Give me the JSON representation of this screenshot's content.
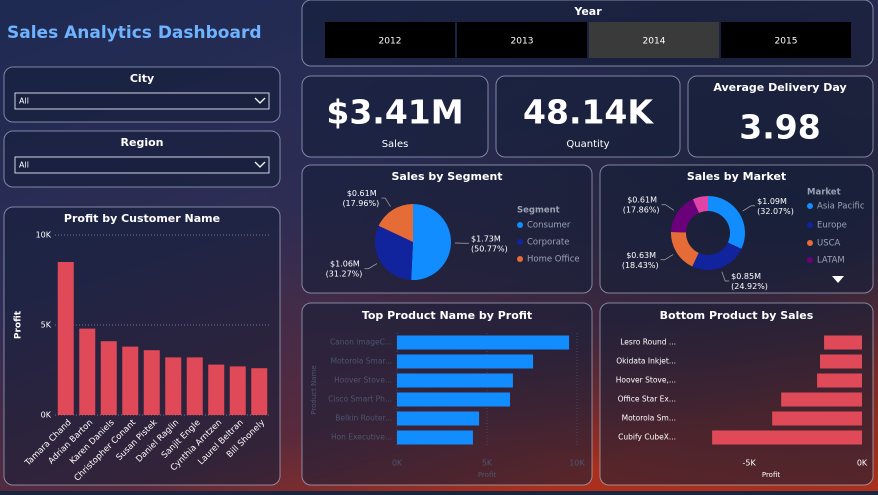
{
  "title": "Sales Analytics Dashboard",
  "slicers": [
    {
      "label": "City",
      "value": "All"
    },
    {
      "label": "Region",
      "value": "All"
    }
  ],
  "year": {
    "label": "Year",
    "options": [
      "2012",
      "2013",
      "2014",
      "2015"
    ],
    "selected": 2
  },
  "cards": [
    {
      "value": "$3.41M",
      "label": "Sales"
    },
    {
      "value": "48.14K",
      "label": "Quantity"
    },
    {
      "title": "Average Delivery Day",
      "value": "3.98"
    }
  ],
  "chart_data": [
    {
      "type": "bar",
      "title": "Profit by Customer Name",
      "y_label": "Profit",
      "color": "#e04a58",
      "categories": [
        "Tamara Chand",
        "Adrian Barton",
        "Karen Daniels",
        "Christopher Conant",
        "Susan Pistek",
        "Daniel Raglin",
        "Sanjit Engle",
        "Cynthia Arntzen",
        "Laurel Beltran",
        "Bill Shonely"
      ],
      "values": [
        8500,
        4800,
        4100,
        3800,
        3600,
        3200,
        3200,
        2800,
        2700,
        2600
      ],
      "ylim": [
        0,
        10000
      ],
      "yticks": [
        {
          "value": 0,
          "label": "0K"
        },
        {
          "value": 5000,
          "label": "5K"
        },
        {
          "value": 10000,
          "label": "10K"
        }
      ],
      "grid": true
    },
    {
      "type": "pie",
      "title": "Sales by Segment",
      "legend_title": "Segment",
      "categories": [
        "Consumer",
        "Corporate",
        "Home Office"
      ],
      "values": [
        50.77,
        31.27,
        17.96
      ],
      "value_labels": [
        "$1.73M (50.77%)",
        "$1.06M (31.27%)",
        "$0.61M (17.96%)"
      ],
      "colors": [
        "#118dff",
        "#12239e",
        "#e66c37"
      ]
    },
    {
      "type": "donut",
      "title": "Sales by Market",
      "legend_title": "Market",
      "categories": [
        "Asia Pacific",
        "Europe",
        "USCA",
        "LATAM",
        null
      ],
      "values": [
        32.07,
        24.92,
        18.43,
        17.86,
        6.72
      ],
      "value_labels": [
        "$1.09M (32.07%)",
        "$0.85M (24.92%)",
        "$0.63M (18.43%)",
        "$0.61M (17.86%)",
        null
      ],
      "colors": [
        "#118dff",
        "#12239e",
        "#e66c37",
        "#6b007b",
        "#e044a7"
      ]
    },
    {
      "type": "hbar",
      "title": "Top Product Name by Profit",
      "x_label": "Profit",
      "y_label": "Product Name",
      "color": "#118dff",
      "categories": [
        "Canon imageC...",
        "Motorola Smar...",
        "Hoover Stove...",
        "Cisco Smart Ph...",
        "Belkin Router...",
        "Hon Executive..."
      ],
      "values": [
        9560,
        7560,
        6440,
        6280,
        4560,
        4220
      ],
      "xlim": [
        0,
        10000
      ],
      "xticks": [
        {
          "value": 0,
          "label": "0K"
        },
        {
          "value": 5000,
          "label": "5K"
        },
        {
          "value": 10000,
          "label": "10K"
        }
      ],
      "grid": true
    },
    {
      "type": "hbar",
      "title": "Bottom Product by Sales",
      "x_label": "Profit",
      "color": "#e04a58",
      "categories": [
        "Lesro Round ...",
        "Okidata Inkjet...",
        "Hoover Stove,...",
        "Office Star Ex...",
        "Motorola Sm...",
        "Cubify CubeX..."
      ],
      "values": [
        -1680,
        -1860,
        -1990,
        -3580,
        -3980,
        -6640
      ],
      "xlim": [
        -7000,
        0
      ],
      "xticks": [
        {
          "value": -5000,
          "label": "-5K"
        },
        {
          "value": 0,
          "label": "0K"
        }
      ],
      "grid": false
    }
  ]
}
